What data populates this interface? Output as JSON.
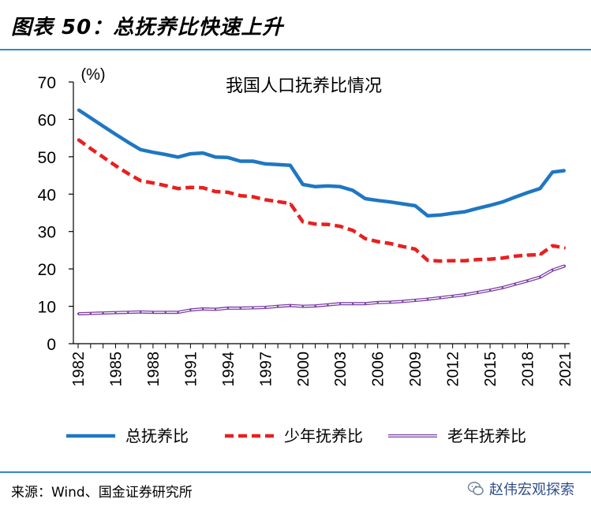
{
  "header": {
    "title": "图表 50：总抚养比快速上升"
  },
  "footer": {
    "source": "来源：Wind、国金证券研究所",
    "watermark": "赵伟宏观探索"
  },
  "chart_data": {
    "type": "line",
    "title": "我国人口抚养比情况",
    "ylabel": "(%)",
    "xlabel": "",
    "ylim": [
      0,
      70
    ],
    "yticks": [
      0,
      10,
      20,
      30,
      40,
      50,
      60,
      70
    ],
    "xlim": [
      1982,
      2021
    ],
    "xticks": [
      1982,
      1985,
      1988,
      1991,
      1994,
      1997,
      2000,
      2003,
      2006,
      2009,
      2012,
      2015,
      2018,
      2021
    ],
    "x": [
      1982,
      1983,
      1984,
      1985,
      1986,
      1987,
      1988,
      1989,
      1990,
      1991,
      1992,
      1993,
      1994,
      1995,
      1996,
      1997,
      1998,
      1999,
      2000,
      2001,
      2002,
      2003,
      2004,
      2005,
      2006,
      2007,
      2008,
      2009,
      2010,
      2011,
      2012,
      2013,
      2014,
      2015,
      2016,
      2017,
      2018,
      2019,
      2020,
      2021
    ],
    "series": [
      {
        "name": "总抚养比",
        "color": "#1f77c2",
        "dash": "solid",
        "values": [
          62.6,
          60.4,
          58.2,
          56.0,
          53.9,
          51.9,
          51.2,
          50.6,
          49.9,
          50.8,
          51.0,
          49.9,
          49.8,
          48.8,
          48.8,
          48.1,
          47.9,
          47.7,
          42.6,
          42.0,
          42.2,
          42.0,
          41.0,
          38.8,
          38.3,
          37.9,
          37.4,
          36.9,
          34.2,
          34.4,
          34.9,
          35.3,
          36.2,
          37.0,
          37.9,
          39.2,
          40.4,
          41.5,
          45.9,
          46.3
        ]
      },
      {
        "name": "少年抚养比",
        "color": "#e8201f",
        "dash": "dashed",
        "values": [
          54.6,
          52.2,
          49.9,
          47.6,
          45.5,
          43.6,
          43.0,
          42.3,
          41.5,
          41.8,
          41.7,
          40.7,
          40.5,
          39.6,
          39.3,
          38.5,
          38.0,
          37.5,
          32.6,
          32.0,
          31.9,
          31.4,
          30.3,
          28.1,
          27.3,
          26.8,
          26.0,
          25.3,
          22.3,
          22.1,
          22.2,
          22.2,
          22.5,
          22.6,
          22.9,
          23.4,
          23.7,
          23.8,
          26.2,
          25.6
        ]
      },
      {
        "name": "老年抚养比",
        "color": "#7c3fa5",
        "dash": "double",
        "values": [
          8.0,
          8.1,
          8.2,
          8.3,
          8.4,
          8.5,
          8.4,
          8.4,
          8.4,
          9.0,
          9.3,
          9.2,
          9.5,
          9.5,
          9.6,
          9.7,
          10.0,
          10.2,
          10.0,
          10.1,
          10.4,
          10.7,
          10.7,
          10.7,
          11.0,
          11.1,
          11.3,
          11.6,
          11.9,
          12.3,
          12.7,
          13.1,
          13.7,
          14.3,
          15.0,
          15.9,
          16.8,
          17.8,
          19.7,
          20.8
        ]
      }
    ],
    "legend_position": "bottom"
  }
}
